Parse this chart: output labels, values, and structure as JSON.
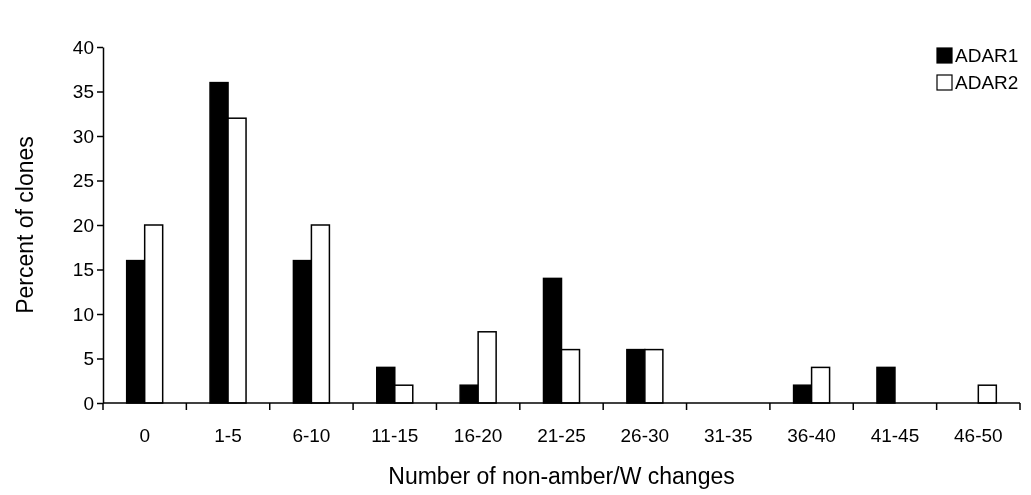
{
  "chart_data": {
    "type": "bar",
    "xlabel": "Number of non-amber/W changes",
    "ylabel": "Percent  of clones",
    "categories": [
      "0",
      "1-5",
      "6-10",
      "11-15",
      "16-20",
      "21-25",
      "26-30",
      "31-35",
      "36-40",
      "41-45",
      "46-50"
    ],
    "series": [
      {
        "name": "ADAR1",
        "color": "#000000",
        "values": [
          16,
          36,
          16,
          4,
          2,
          14,
          6,
          0,
          2,
          4,
          0
        ]
      },
      {
        "name": "ADAR2",
        "color": "#ffffff",
        "values": [
          20,
          32,
          20,
          2,
          8,
          6,
          6,
          0,
          4,
          0,
          2
        ]
      }
    ],
    "ylim": [
      0,
      40
    ],
    "yticks": [
      0,
      5,
      10,
      15,
      20,
      25,
      30,
      35,
      40
    ],
    "grid": false,
    "legend": "top right"
  }
}
